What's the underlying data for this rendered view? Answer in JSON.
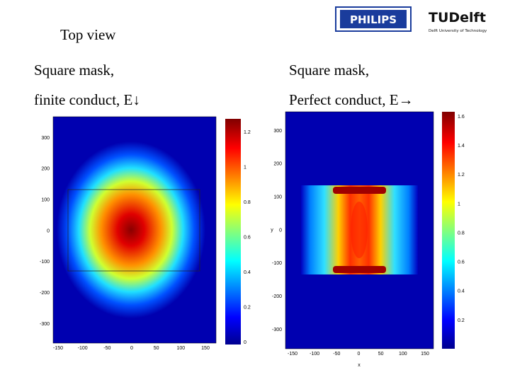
{
  "header": {
    "title": "Top view",
    "logo_left": "PHILIPS",
    "logo_right": "TUDelft",
    "logo_right_sub": "Delft University of Technology"
  },
  "panels": [
    {
      "line1": "Square mask,",
      "line2": "finite conduct, E↓",
      "yticks": [
        "300",
        "200",
        "100",
        "0",
        "-100",
        "-200",
        "-300"
      ],
      "xticks": [
        "-150",
        "-100",
        "-50",
        "0",
        "50",
        "100",
        "150"
      ],
      "colorbar": [
        "1.2",
        "1",
        "0.8",
        "0.6",
        "0.4",
        "0.2",
        "0"
      ]
    },
    {
      "line1": "Square mask,",
      "line2": "Perfect conduct, E→",
      "yticks": [
        "300",
        "200",
        "100",
        "0",
        "-100",
        "-200",
        "-300"
      ],
      "xticks": [
        "-150",
        "-100",
        "-50",
        "0",
        "50",
        "100",
        "150"
      ],
      "colorbar": [
        "1.6",
        "1.4",
        "1.2",
        "1",
        "0.8",
        "0.6",
        "0.4",
        "0.2"
      ],
      "ylabel": "y",
      "xlabel": "x"
    }
  ]
}
